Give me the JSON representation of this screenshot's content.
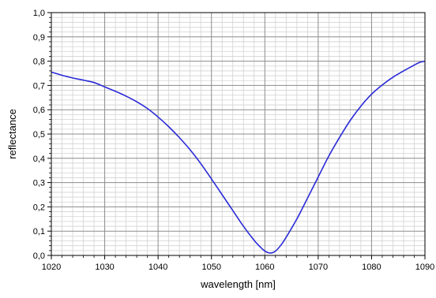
{
  "chart_data": {
    "type": "line",
    "title": "",
    "xlabel": "wavelength [nm]",
    "ylabel": "reflectance",
    "xlim": [
      1020,
      1090
    ],
    "ylim": [
      0.0,
      1.0
    ],
    "grid": "major and minor",
    "legend": "none",
    "x_ticks": [
      1020,
      1030,
      1040,
      1050,
      1060,
      1070,
      1080,
      1090
    ],
    "x_tick_labels": [
      "1020",
      "1030",
      "1040",
      "1050",
      "1060",
      "1070",
      "1080",
      "1090"
    ],
    "y_ticks": [
      0.0,
      0.1,
      0.2,
      0.3,
      0.4,
      0.5,
      0.6,
      0.7,
      0.8,
      0.9,
      1.0
    ],
    "y_tick_labels": [
      "0,0",
      "0,1",
      "0,2",
      "0,3",
      "0,4",
      "0,5",
      "0,6",
      "0,7",
      "0,8",
      "0,9",
      "1,0"
    ],
    "colors": {
      "line": "#2a2ad8",
      "major_grid": "#8c8c8c",
      "minor_grid": "#d2d2d2",
      "frame": "#000000"
    },
    "series": [
      {
        "x": [
          1020,
          1022,
          1024,
          1026,
          1028,
          1030,
          1032,
          1034,
          1036,
          1038,
          1040,
          1042,
          1044,
          1046,
          1048,
          1050,
          1052,
          1054,
          1056,
          1058,
          1059,
          1060,
          1061,
          1062,
          1063,
          1064,
          1066,
          1068,
          1070,
          1072,
          1074,
          1076,
          1078,
          1080,
          1082,
          1084,
          1086,
          1088,
          1089,
          1090
        ],
        "values": [
          0.755,
          0.742,
          0.731,
          0.722,
          0.712,
          0.694,
          0.676,
          0.656,
          0.633,
          0.605,
          0.57,
          0.53,
          0.485,
          0.435,
          0.378,
          0.315,
          0.25,
          0.185,
          0.12,
          0.062,
          0.038,
          0.018,
          0.01,
          0.018,
          0.042,
          0.075,
          0.15,
          0.236,
          0.323,
          0.41,
          0.486,
          0.556,
          0.615,
          0.664,
          0.702,
          0.734,
          0.76,
          0.784,
          0.795,
          0.8
        ]
      }
    ]
  }
}
